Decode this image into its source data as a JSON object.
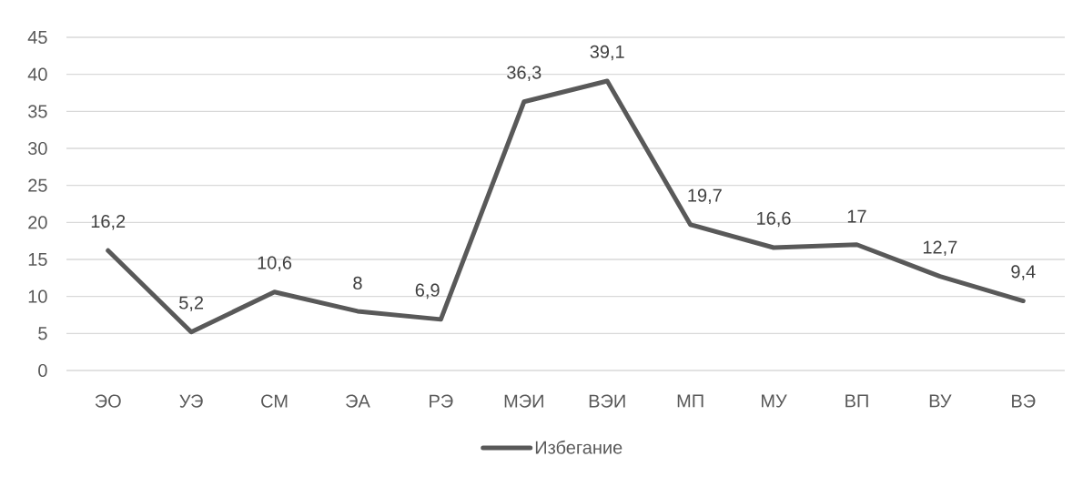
{
  "chart_data": {
    "type": "line",
    "categories": [
      "ЭО",
      "УЭ",
      "СМ",
      "ЭА",
      "РЭ",
      "МЭИ",
      "ВЭИ",
      "МП",
      "МУ",
      "ВП",
      "ВУ",
      "ВЭ"
    ],
    "series": [
      {
        "name": "Избегание",
        "color": "#595959",
        "values": [
          16.2,
          5.2,
          10.6,
          8,
          6.9,
          36.3,
          39.1,
          19.7,
          16.6,
          17,
          12.7,
          9.4
        ],
        "value_labels": [
          "16,2",
          "5,2",
          "10,6",
          "8",
          "6,9",
          "36,3",
          "39,1",
          "19,7",
          "16,6",
          "17",
          "12,7",
          "9,4"
        ]
      }
    ],
    "ylim": [
      0,
      45
    ],
    "yticks": [
      0,
      5,
      10,
      15,
      20,
      25,
      30,
      35,
      40,
      45
    ],
    "grid": "y",
    "legend": "bottom"
  }
}
